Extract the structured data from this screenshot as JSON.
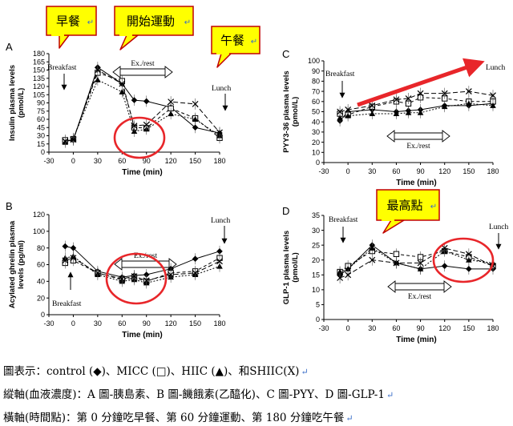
{
  "callouts": [
    {
      "text": "早餐",
      "panel": "A"
    },
    {
      "text": "開始運動",
      "panel": "A"
    },
    {
      "text": "午餐",
      "panel": "A"
    },
    {
      "text": "最高點",
      "panel": "D"
    }
  ],
  "para_mark": "↵",
  "caption_lines": [
    "圖表示：control (◆)、MICC (□)、HIIC (▲)、和SHIIC(X)",
    "縱軸(血液濃度)：A 圖-胰島素、B 圖-饑餓素(乙醯化)、C 圖-PYY、D 圖-GLP-1",
    "橫軸(時間點)：第 0 分鐘吃早餐、第 60 分鐘運動、第 180 分鐘吃午餐"
  ],
  "chart_data": [
    {
      "panel": "A",
      "type": "line",
      "ylabel": "Insulin plasma levels (pmol/L)",
      "xlabel": "Time (min)",
      "xlim": [
        -30,
        180
      ],
      "ylim": [
        0,
        180
      ],
      "xticks": [
        -30,
        0,
        30,
        60,
        90,
        120,
        150,
        180
      ],
      "yticks": [
        0,
        15,
        30,
        45,
        60,
        75,
        90,
        105,
        120,
        135,
        150,
        165,
        180
      ],
      "annotations": {
        "breakfast": "Breakfast",
        "lunch": "Lunch",
        "exercise": "Ex./rest"
      },
      "x": [
        -10,
        0,
        30,
        60,
        75,
        90,
        120,
        150,
        180
      ],
      "series": [
        {
          "name": "control",
          "marker": "diamond",
          "values": [
            20,
            22,
            155,
            125,
            95,
            93,
            82,
            45,
            35
          ]
        },
        {
          "name": "MICC",
          "marker": "square",
          "values": [
            22,
            24,
            145,
            130,
            45,
            44,
            80,
            62,
            26
          ]
        },
        {
          "name": "HIIC",
          "marker": "triangle",
          "values": [
            18,
            25,
            132,
            110,
            38,
            42,
            70,
            60,
            30
          ]
        },
        {
          "name": "SHIIC",
          "marker": "x",
          "values": [
            20,
            23,
            150,
            125,
            48,
            50,
            92,
            88,
            36
          ]
        }
      ]
    },
    {
      "panel": "B",
      "type": "line",
      "ylabel": "Acylated ghrelin plasma levels (pg/ml)",
      "xlabel": "Time (min)",
      "xlim": [
        -30,
        180
      ],
      "ylim": [
        0,
        120
      ],
      "xticks": [
        -30,
        0,
        30,
        60,
        90,
        120,
        150,
        180
      ],
      "yticks": [
        0,
        20,
        40,
        60,
        80,
        100,
        120
      ],
      "annotations": {
        "breakfast": "Breakfast",
        "lunch": "Lunch",
        "exercise": "Ex./rest"
      },
      "x": [
        -10,
        0,
        30,
        60,
        75,
        90,
        120,
        150,
        180
      ],
      "series": [
        {
          "name": "control",
          "marker": "diamond",
          "values": [
            82,
            80,
            52,
            45,
            47,
            48,
            55,
            67,
            76
          ]
        },
        {
          "name": "MICC",
          "marker": "square",
          "values": [
            62,
            65,
            50,
            42,
            44,
            40,
            50,
            52,
            68
          ]
        },
        {
          "name": "HIIC",
          "marker": "triangle",
          "values": [
            68,
            70,
            48,
            40,
            42,
            38,
            45,
            48,
            58
          ]
        },
        {
          "name": "SHIIC",
          "marker": "x",
          "values": [
            65,
            68,
            50,
            43,
            46,
            41,
            48,
            50,
            64
          ]
        }
      ]
    },
    {
      "panel": "C",
      "type": "line",
      "ylabel": "PYY3-36 plasma levels (pmol/L)",
      "xlabel": "Time (min)",
      "xlim": [
        -30,
        180
      ],
      "ylim": [
        0,
        100
      ],
      "xticks": [
        -30,
        0,
        30,
        60,
        90,
        120,
        150,
        180
      ],
      "yticks": [
        0,
        10,
        20,
        30,
        40,
        50,
        60,
        70,
        80,
        90,
        100
      ],
      "annotations": {
        "breakfast": "Breakfast",
        "lunch": "Lunch",
        "exercise": "Ex./rest"
      },
      "x": [
        -10,
        0,
        30,
        60,
        75,
        90,
        120,
        150,
        180
      ],
      "series": [
        {
          "name": "control",
          "marker": "diamond",
          "values": [
            41,
            50,
            52,
            50,
            51,
            52,
            56,
            56,
            58
          ]
        },
        {
          "name": "MICC",
          "marker": "square",
          "values": [
            48,
            47,
            55,
            60,
            58,
            64,
            63,
            60,
            60
          ]
        },
        {
          "name": "HIIC",
          "marker": "triangle",
          "values": [
            44,
            46,
            48,
            48,
            49,
            49,
            55,
            58,
            56
          ]
        },
        {
          "name": "SHIIC",
          "marker": "x",
          "values": [
            50,
            52,
            56,
            62,
            63,
            68,
            68,
            70,
            66
          ]
        }
      ]
    },
    {
      "panel": "D",
      "type": "line",
      "ylabel": "GLP-1 plasma levels (pmol/L)",
      "xlabel": "Time (min)",
      "xlim": [
        -30,
        180
      ],
      "ylim": [
        0,
        35
      ],
      "xticks": [
        -30,
        0,
        30,
        60,
        90,
        120,
        150,
        180
      ],
      "yticks": [
        0,
        5,
        10,
        15,
        20,
        25,
        30,
        35
      ],
      "annotations": {
        "breakfast": "Breakfast",
        "lunch": "Lunch",
        "exercise": "Ex./rest"
      },
      "x": [
        -10,
        0,
        30,
        60,
        90,
        120,
        150,
        180
      ],
      "series": [
        {
          "name": "control",
          "marker": "diamond",
          "values": [
            15,
            17,
            25,
            19,
            17,
            18,
            17,
            17
          ]
        },
        {
          "name": "MICC",
          "marker": "square",
          "values": [
            16,
            18,
            23,
            22,
            21,
            23,
            21,
            18
          ]
        },
        {
          "name": "HIIC",
          "marker": "triangle",
          "values": [
            16,
            17,
            24,
            19,
            17,
            23,
            20,
            19
          ]
        },
        {
          "name": "SHIIC",
          "marker": "x",
          "values": [
            14,
            15,
            20,
            19,
            19,
            24,
            22,
            18
          ]
        }
      ]
    }
  ]
}
